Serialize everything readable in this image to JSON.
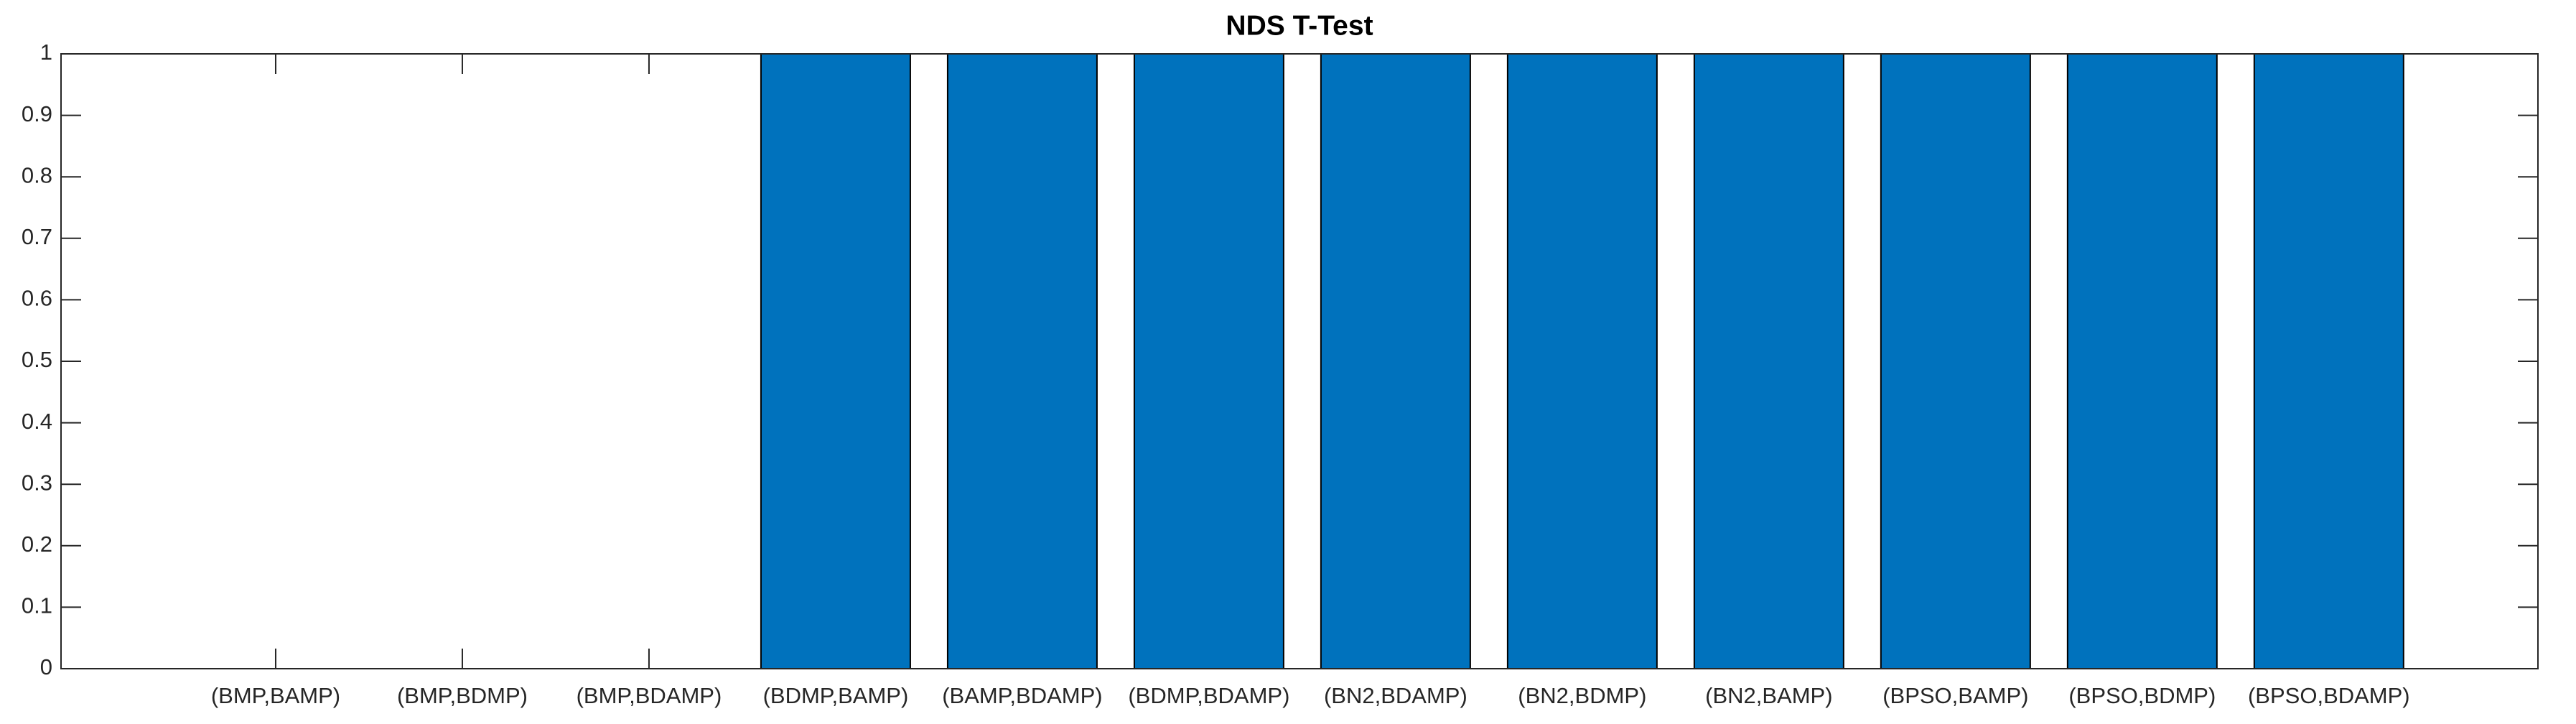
{
  "chart_data": {
    "type": "bar",
    "title": "NDS T-Test",
    "categories": [
      "(BMP,BAMP)",
      "(BMP,BDMP)",
      "(BMP,BDAMP)",
      "(BDMP,BAMP)",
      "(BAMP,BDAMP)",
      "(BDMP,BDAMP)",
      "(BN2,BDAMP)",
      "(BN2,BDMP)",
      "(BN2,BAMP)",
      "(BPSO,BAMP)",
      "(BPSO,BDMP)",
      "(BPSO,BDAMP)"
    ],
    "values": [
      0,
      0,
      0,
      1,
      1,
      1,
      1,
      1,
      1,
      1,
      1,
      1
    ],
    "color": "#0072bd",
    "ylim": [
      0,
      1
    ],
    "yticks": [
      0,
      0.1,
      0.2,
      0.3,
      0.4,
      0.5,
      0.6,
      0.7,
      0.8,
      0.9,
      1
    ],
    "grid": false
  }
}
